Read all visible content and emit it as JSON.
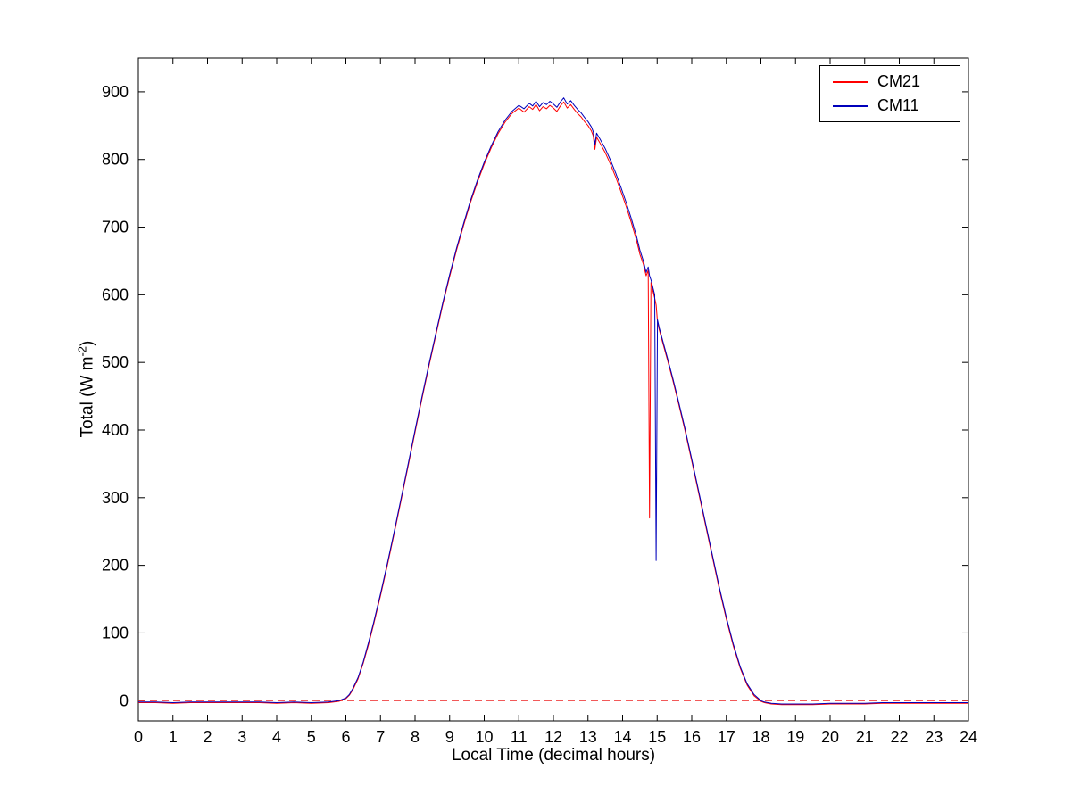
{
  "figure": {
    "background": "#ffffff",
    "border_color": "#000000"
  },
  "ylabel_parts": {
    "pre": "Total (W m",
    "sup": "-2",
    "post": ")"
  },
  "chart_data": {
    "type": "line",
    "title": "",
    "xlabel": "Local Time (decimal hours)",
    "ylabel": "Total (W m^-2)",
    "xlim": [
      0,
      24
    ],
    "ylim": [
      -30,
      950
    ],
    "x_ticks": [
      0,
      1,
      2,
      3,
      4,
      5,
      6,
      7,
      8,
      9,
      10,
      11,
      12,
      13,
      14,
      15,
      16,
      17,
      18,
      19,
      20,
      21,
      22,
      23,
      24
    ],
    "y_ticks": [
      0,
      100,
      200,
      300,
      400,
      500,
      600,
      700,
      800,
      900
    ],
    "grid": false,
    "legend_position": "top-right",
    "zero_line": {
      "y": 0,
      "color": "#ee2222",
      "style": "dashed"
    },
    "x": [
      0,
      0.5,
      1,
      1.5,
      2,
      2.5,
      3,
      3.5,
      4,
      4.5,
      5,
      5.5,
      5.8,
      6,
      6.1,
      6.2,
      6.35,
      6.5,
      6.65,
      6.8,
      7,
      7.2,
      7.4,
      7.6,
      7.8,
      8,
      8.2,
      8.4,
      8.6,
      8.8,
      9,
      9.2,
      9.4,
      9.6,
      9.8,
      10,
      10.2,
      10.4,
      10.6,
      10.8,
      11,
      11.15,
      11.3,
      11.4,
      11.5,
      11.6,
      11.7,
      11.8,
      11.9,
      12,
      12.1,
      12.2,
      12.3,
      12.4,
      12.5,
      12.6,
      12.7,
      12.8,
      12.9,
      13,
      13.1,
      13.15,
      13.2,
      13.25,
      13.35,
      13.5,
      13.65,
      13.8,
      13.95,
      14.1,
      14.25,
      14.4,
      14.5,
      14.6,
      14.68,
      14.74,
      14.78,
      14.82,
      14.88,
      14.93,
      14.97,
      15.01,
      15.06,
      15.15,
      15.3,
      15.45,
      15.6,
      15.8,
      16,
      16.2,
      16.4,
      16.6,
      16.8,
      17,
      17.2,
      17.4,
      17.6,
      17.8,
      18,
      18.1,
      18.3,
      18.6,
      19,
      19.5,
      20,
      20.5,
      21,
      21.5,
      22,
      22.5,
      23,
      23.5,
      24
    ],
    "series": [
      {
        "name": "CM21",
        "color": "#ff0000",
        "values": [
          -3,
          -3,
          -4,
          -3,
          -3,
          -3,
          -3,
          -3,
          -4,
          -3,
          -4,
          -3,
          -1,
          3,
          8,
          16,
          32,
          55,
          82,
          112,
          155,
          200,
          248,
          297,
          347,
          397,
          446,
          494,
          540,
          585,
          627,
          666,
          702,
          736,
          766,
          793,
          817,
          838,
          855,
          868,
          876,
          870,
          878,
          874,
          881,
          872,
          878,
          875,
          880,
          876,
          871,
          879,
          885,
          876,
          881,
          874,
          868,
          863,
          856,
          850,
          842,
          835,
          815,
          833,
          824,
          810,
          793,
          774,
          753,
          731,
          707,
          681,
          660,
          645,
          628,
          636,
          270,
          618,
          605,
          595,
          585,
          560,
          548,
          531,
          503,
          474,
          443,
          400,
          354,
          307,
          259,
          211,
          164,
          120,
          81,
          48,
          23,
          7,
          -1,
          -3,
          -5,
          -6,
          -6,
          -6,
          -5,
          -5,
          -5,
          -4,
          -4,
          -4,
          -4,
          -4,
          -4
        ]
      },
      {
        "name": "CM11",
        "color": "#0000bb",
        "values": [
          -2,
          -2,
          -3,
          -2,
          -2,
          -2,
          -2,
          -2,
          -3,
          -2,
          -3,
          -2,
          0,
          4,
          9,
          18,
          34,
          57,
          85,
          115,
          158,
          203,
          251,
          300,
          350,
          400,
          449,
          497,
          543,
          588,
          630,
          669,
          705,
          739,
          769,
          796,
          820,
          841,
          858,
          871,
          880,
          875,
          883,
          879,
          886,
          878,
          884,
          881,
          886,
          882,
          877,
          885,
          891,
          882,
          887,
          880,
          874,
          869,
          862,
          856,
          848,
          841,
          822,
          839,
          830,
          816,
          799,
          780,
          759,
          737,
          713,
          687,
          666,
          650,
          633,
          641,
          628,
          622,
          610,
          600,
          207,
          563,
          551,
          534,
          506,
          477,
          446,
          403,
          357,
          310,
          262,
          214,
          167,
          123,
          84,
          50,
          25,
          9,
          0,
          -2,
          -4,
          -5,
          -5,
          -5,
          -4,
          -4,
          -4,
          -3,
          -3,
          -3,
          -3,
          -3,
          -3
        ]
      }
    ]
  }
}
